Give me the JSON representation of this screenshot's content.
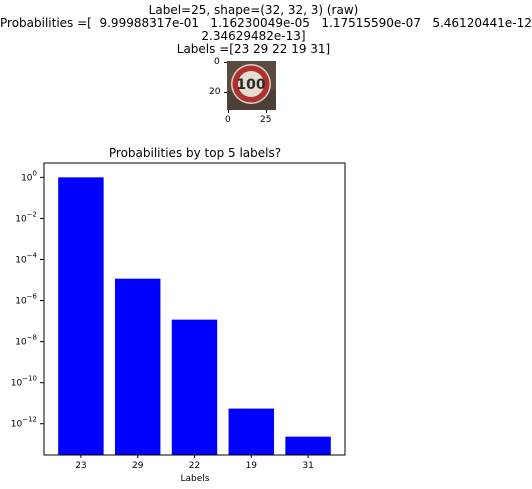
{
  "header": {
    "line1": "Label=25, shape=(32, 32, 3) (raw)",
    "line2": "Probabilities =[  9.99988317e-01   1.16230049e-05   1.17515590e-07   5.46120441e-12",
    "line3": "2.34629482e-13]",
    "line4": "Labels =[23 29 22 19 31]"
  },
  "thumbnail": {
    "sign_text": "100",
    "y_ticks": [
      "0",
      "20"
    ],
    "x_ticks": [
      "0",
      "25"
    ]
  },
  "chart_data": {
    "type": "bar",
    "title": "Probabilities by top 5 labels?",
    "xlabel": "Labels",
    "ylabel": "",
    "categories": [
      "23",
      "29",
      "22",
      "19",
      "31"
    ],
    "values": [
      0.999988317,
      1.16230049e-05,
      1.1751559e-07,
      5.46120441e-12,
      2.34629482e-13
    ],
    "yscale": "log",
    "ylim": [
      3e-14,
      5
    ],
    "y_tick_exponents": [
      0,
      -2,
      -4,
      -6,
      -8,
      -10,
      -12
    ],
    "bar_color": "#0000ff",
    "grid": false
  }
}
